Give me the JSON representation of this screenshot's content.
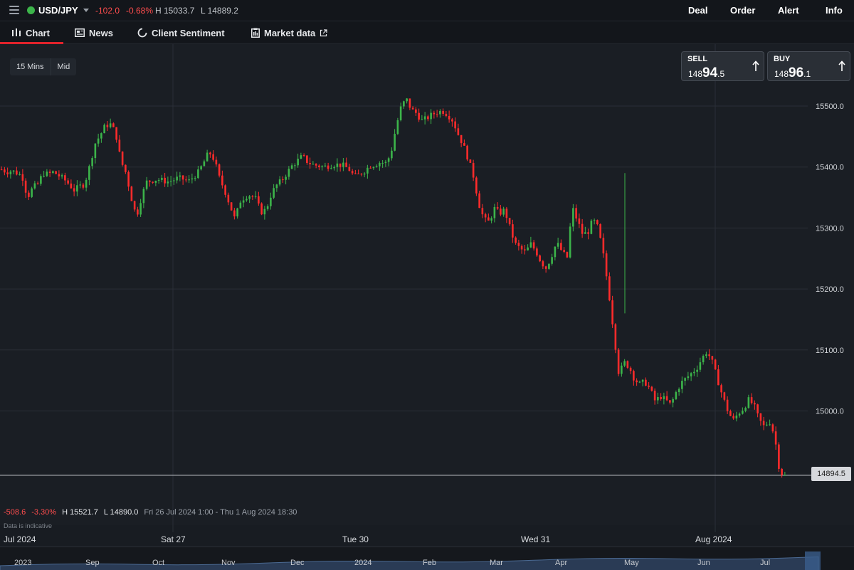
{
  "header": {
    "instrument": "USD/JPY",
    "change_abs": "-102.0",
    "change_pct": "-0.68%",
    "high": "H 15033.7",
    "low": "L 14889.2",
    "nav": [
      "Deal",
      "Order",
      "Alert",
      "Info"
    ]
  },
  "tabs": [
    {
      "label": "Chart"
    },
    {
      "label": "News"
    },
    {
      "label": "Client Sentiment"
    },
    {
      "label": "Market data"
    }
  ],
  "toolbar": {
    "timeframe": "15 Mins",
    "price_type": "Mid"
  },
  "quotes": {
    "sell": {
      "label": "SELL",
      "p1": "148",
      "p2": "94",
      "p3": ".5"
    },
    "buy": {
      "label": "BUY",
      "p1": "148",
      "p2": "96",
      "p3": ".1"
    }
  },
  "current_price": "14894.5",
  "stats": {
    "change_abs": "-508.6",
    "change_pct": "-3.30%",
    "high": "H 15521.7",
    "low": "L 14890.0",
    "range": "Fri 26 Jul 2024 1:00 - Thu 1 Aug 2024 18:30",
    "note": "Data is indicative"
  },
  "navigator": {
    "labels": [
      "2023",
      "Sep",
      "Oct",
      "Nov",
      "Dec",
      "2024",
      "Feb",
      "Mar",
      "Apr",
      "May",
      "Jun",
      "Jul"
    ]
  },
  "colors": {
    "up": "#3cb44a",
    "down": "#ff2b2b",
    "accent": "#e0232b"
  },
  "chart_data": {
    "type": "candlestick",
    "y_ticks": [
      "15500.0",
      "15400.0",
      "15300.0",
      "15200.0",
      "15100.0",
      "15000.0"
    ],
    "ylim": [
      14860,
      15560
    ],
    "x_ticks": [
      "Jul 2024",
      "Sat 27",
      "Tue 30",
      "Wed 31",
      "Aug 2024"
    ],
    "close_path": [
      15396,
      15392,
      15394,
      15390,
      15385,
      15350,
      15366,
      15372,
      15390,
      15388,
      15392,
      15386,
      15380,
      15372,
      15362,
      15368,
      15372,
      15402,
      15438,
      15452,
      15468,
      15470,
      15456,
      15410,
      15390,
      15350,
      15318,
      15352,
      15376,
      15378,
      15380,
      15378,
      15376,
      15378,
      15382,
      15380,
      15376,
      15384,
      15392,
      15408,
      15425,
      15412,
      15382,
      15362,
      15338,
      15314,
      15344,
      15352,
      15354,
      15348,
      15326,
      15330,
      15356,
      15370,
      15378,
      15390,
      15402,
      15410,
      15418,
      15408,
      15404,
      15402,
      15400,
      15402,
      15404,
      15404,
      15402,
      15396,
      15384,
      15388,
      15394,
      15402,
      15404,
      15408,
      15406,
      15420,
      15464,
      15498,
      15512,
      15494,
      15488,
      15476,
      15480,
      15486,
      15490,
      15492,
      15486,
      15476,
      15454,
      15436,
      15412,
      15384,
      15340,
      15314,
      15310,
      15332,
      15324,
      15330,
      15300,
      15274,
      15266,
      15260,
      15274,
      15262,
      15244,
      15234,
      15254,
      15276,
      15262,
      15250,
      15334,
      15312,
      15290,
      15292,
      15314,
      15300,
      15256,
      15198,
      15130,
      15060,
      15080,
      15072,
      15052,
      15044,
      15048,
      15036,
      15016,
      15024,
      15018,
      15010,
      15030,
      15046,
      15054,
      15062,
      15070,
      15086,
      15098,
      15080,
      15052,
      15024,
      15000,
      14984,
      14996,
      15004,
      15018,
      15010,
      14986,
      14974,
      14984,
      14960,
      14900,
      14894
    ]
  }
}
